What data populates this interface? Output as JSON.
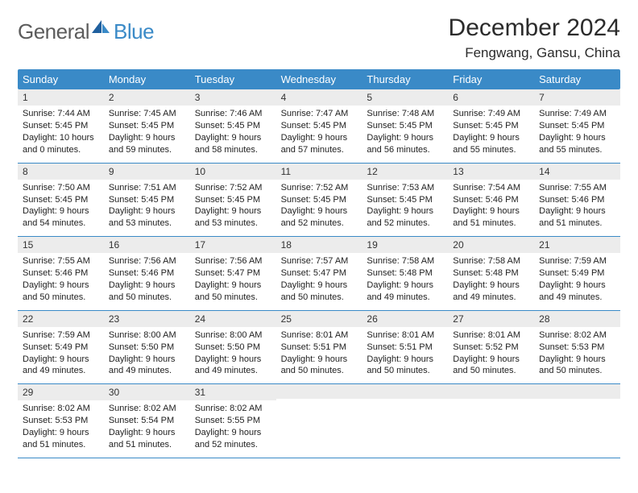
{
  "logo": {
    "word1": "General",
    "word2": "Blue"
  },
  "title": "December 2024",
  "location": "Fengwang, Gansu, China",
  "colors": {
    "header_bg": "#3a8ac7",
    "header_text": "#ffffff",
    "daynum_bg": "#ececec",
    "rule": "#3a8ac7",
    "logo_gray": "#5c5c5c",
    "logo_blue": "#3a8ac7",
    "text": "#222222",
    "page_bg": "#ffffff"
  },
  "weekdays": [
    "Sunday",
    "Monday",
    "Tuesday",
    "Wednesday",
    "Thursday",
    "Friday",
    "Saturday"
  ],
  "weeks": [
    [
      {
        "n": "1",
        "sr": "Sunrise: 7:44 AM",
        "ss": "Sunset: 5:45 PM",
        "dl": "Daylight: 10 hours and 0 minutes."
      },
      {
        "n": "2",
        "sr": "Sunrise: 7:45 AM",
        "ss": "Sunset: 5:45 PM",
        "dl": "Daylight: 9 hours and 59 minutes."
      },
      {
        "n": "3",
        "sr": "Sunrise: 7:46 AM",
        "ss": "Sunset: 5:45 PM",
        "dl": "Daylight: 9 hours and 58 minutes."
      },
      {
        "n": "4",
        "sr": "Sunrise: 7:47 AM",
        "ss": "Sunset: 5:45 PM",
        "dl": "Daylight: 9 hours and 57 minutes."
      },
      {
        "n": "5",
        "sr": "Sunrise: 7:48 AM",
        "ss": "Sunset: 5:45 PM",
        "dl": "Daylight: 9 hours and 56 minutes."
      },
      {
        "n": "6",
        "sr": "Sunrise: 7:49 AM",
        "ss": "Sunset: 5:45 PM",
        "dl": "Daylight: 9 hours and 55 minutes."
      },
      {
        "n": "7",
        "sr": "Sunrise: 7:49 AM",
        "ss": "Sunset: 5:45 PM",
        "dl": "Daylight: 9 hours and 55 minutes."
      }
    ],
    [
      {
        "n": "8",
        "sr": "Sunrise: 7:50 AM",
        "ss": "Sunset: 5:45 PM",
        "dl": "Daylight: 9 hours and 54 minutes."
      },
      {
        "n": "9",
        "sr": "Sunrise: 7:51 AM",
        "ss": "Sunset: 5:45 PM",
        "dl": "Daylight: 9 hours and 53 minutes."
      },
      {
        "n": "10",
        "sr": "Sunrise: 7:52 AM",
        "ss": "Sunset: 5:45 PM",
        "dl": "Daylight: 9 hours and 53 minutes."
      },
      {
        "n": "11",
        "sr": "Sunrise: 7:52 AM",
        "ss": "Sunset: 5:45 PM",
        "dl": "Daylight: 9 hours and 52 minutes."
      },
      {
        "n": "12",
        "sr": "Sunrise: 7:53 AM",
        "ss": "Sunset: 5:45 PM",
        "dl": "Daylight: 9 hours and 52 minutes."
      },
      {
        "n": "13",
        "sr": "Sunrise: 7:54 AM",
        "ss": "Sunset: 5:46 PM",
        "dl": "Daylight: 9 hours and 51 minutes."
      },
      {
        "n": "14",
        "sr": "Sunrise: 7:55 AM",
        "ss": "Sunset: 5:46 PM",
        "dl": "Daylight: 9 hours and 51 minutes."
      }
    ],
    [
      {
        "n": "15",
        "sr": "Sunrise: 7:55 AM",
        "ss": "Sunset: 5:46 PM",
        "dl": "Daylight: 9 hours and 50 minutes."
      },
      {
        "n": "16",
        "sr": "Sunrise: 7:56 AM",
        "ss": "Sunset: 5:46 PM",
        "dl": "Daylight: 9 hours and 50 minutes."
      },
      {
        "n": "17",
        "sr": "Sunrise: 7:56 AM",
        "ss": "Sunset: 5:47 PM",
        "dl": "Daylight: 9 hours and 50 minutes."
      },
      {
        "n": "18",
        "sr": "Sunrise: 7:57 AM",
        "ss": "Sunset: 5:47 PM",
        "dl": "Daylight: 9 hours and 50 minutes."
      },
      {
        "n": "19",
        "sr": "Sunrise: 7:58 AM",
        "ss": "Sunset: 5:48 PM",
        "dl": "Daylight: 9 hours and 49 minutes."
      },
      {
        "n": "20",
        "sr": "Sunrise: 7:58 AM",
        "ss": "Sunset: 5:48 PM",
        "dl": "Daylight: 9 hours and 49 minutes."
      },
      {
        "n": "21",
        "sr": "Sunrise: 7:59 AM",
        "ss": "Sunset: 5:49 PM",
        "dl": "Daylight: 9 hours and 49 minutes."
      }
    ],
    [
      {
        "n": "22",
        "sr": "Sunrise: 7:59 AM",
        "ss": "Sunset: 5:49 PM",
        "dl": "Daylight: 9 hours and 49 minutes."
      },
      {
        "n": "23",
        "sr": "Sunrise: 8:00 AM",
        "ss": "Sunset: 5:50 PM",
        "dl": "Daylight: 9 hours and 49 minutes."
      },
      {
        "n": "24",
        "sr": "Sunrise: 8:00 AM",
        "ss": "Sunset: 5:50 PM",
        "dl": "Daylight: 9 hours and 49 minutes."
      },
      {
        "n": "25",
        "sr": "Sunrise: 8:01 AM",
        "ss": "Sunset: 5:51 PM",
        "dl": "Daylight: 9 hours and 50 minutes."
      },
      {
        "n": "26",
        "sr": "Sunrise: 8:01 AM",
        "ss": "Sunset: 5:51 PM",
        "dl": "Daylight: 9 hours and 50 minutes."
      },
      {
        "n": "27",
        "sr": "Sunrise: 8:01 AM",
        "ss": "Sunset: 5:52 PM",
        "dl": "Daylight: 9 hours and 50 minutes."
      },
      {
        "n": "28",
        "sr": "Sunrise: 8:02 AM",
        "ss": "Sunset: 5:53 PM",
        "dl": "Daylight: 9 hours and 50 minutes."
      }
    ],
    [
      {
        "n": "29",
        "sr": "Sunrise: 8:02 AM",
        "ss": "Sunset: 5:53 PM",
        "dl": "Daylight: 9 hours and 51 minutes."
      },
      {
        "n": "30",
        "sr": "Sunrise: 8:02 AM",
        "ss": "Sunset: 5:54 PM",
        "dl": "Daylight: 9 hours and 51 minutes."
      },
      {
        "n": "31",
        "sr": "Sunrise: 8:02 AM",
        "ss": "Sunset: 5:55 PM",
        "dl": "Daylight: 9 hours and 52 minutes."
      },
      {
        "empty": true
      },
      {
        "empty": true
      },
      {
        "empty": true
      },
      {
        "empty": true
      }
    ]
  ]
}
